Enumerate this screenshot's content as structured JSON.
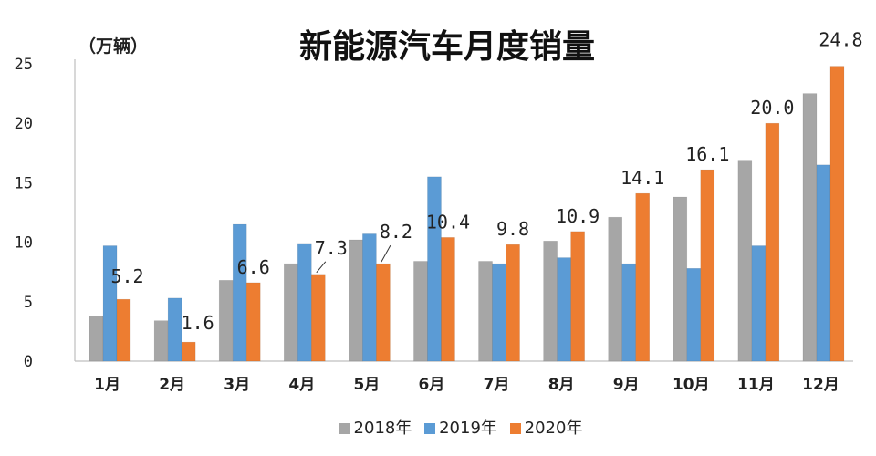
{
  "chart_data": {
    "type": "bar",
    "title": "新能源汽车月度销量",
    "unit_label": "（万辆）",
    "categories": [
      "1月",
      "2月",
      "3月",
      "4月",
      "5月",
      "6月",
      "7月",
      "8月",
      "9月",
      "10月",
      "11月",
      "12月"
    ],
    "series": [
      {
        "name": "2018年",
        "color": "#a6a6a6",
        "values": [
          3.8,
          3.4,
          6.8,
          8.2,
          10.2,
          8.4,
          8.4,
          10.1,
          12.1,
          13.8,
          16.9,
          22.5
        ]
      },
      {
        "name": "2019年",
        "color": "#5b9bd5",
        "values": [
          9.7,
          5.3,
          11.5,
          9.9,
          10.7,
          15.5,
          8.2,
          8.7,
          8.2,
          7.8,
          9.7,
          16.5
        ]
      },
      {
        "name": "2020年",
        "color": "#ed7d31",
        "values": [
          5.2,
          1.6,
          6.6,
          7.3,
          8.2,
          10.4,
          9.8,
          10.9,
          14.1,
          16.1,
          20.0,
          24.8
        ]
      }
    ],
    "data_labels_2020": [
      "5.2",
      "1.6",
      "6.6",
      "7.3",
      "8.2",
      "10.4",
      "9.8",
      "10.9",
      "14.1",
      "16.1",
      "20.0",
      "24.8"
    ],
    "yticks": [
      "0",
      "5",
      "10",
      "15",
      "20",
      "25"
    ],
    "ylim": [
      0,
      25
    ],
    "grid": false,
    "legend_position": "bottom"
  }
}
